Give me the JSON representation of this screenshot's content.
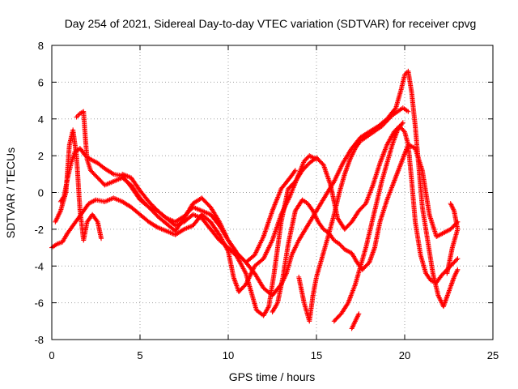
{
  "chart_data": {
    "type": "scatter",
    "title": "Day 254 of 2021, Sidereal Day-to-day VTEC variation (SDTVAR) for receiver cpvg",
    "xlabel": "GPS time / hours",
    "ylabel": "SDTVAR / TECUs",
    "xlim": [
      0,
      25
    ],
    "ylim": [
      -8,
      8
    ],
    "xticks": [
      0,
      5,
      10,
      15,
      20,
      25
    ],
    "yticks": [
      -8,
      -6,
      -4,
      -2,
      0,
      2,
      4,
      6,
      8
    ],
    "grid": true,
    "marker": "+",
    "color": "#ff0000",
    "series": [
      {
        "x": [
          0.0,
          0.3,
          0.6,
          0.9,
          1.2,
          1.5,
          1.8,
          2.1,
          2.5,
          3.0,
          3.5,
          4.0,
          4.5,
          5.0,
          5.5,
          6.0,
          6.5,
          7.0,
          7.5,
          8.0,
          8.5,
          9.0,
          9.5,
          10.0,
          10.3,
          10.6,
          11.0,
          11.5,
          12.0,
          12.5,
          13.0,
          13.5,
          14.0,
          14.3,
          14.6,
          15.0
        ],
        "y": [
          -3.0,
          -2.8,
          -2.7,
          -2.2,
          -1.8,
          -1.4,
          -1.0,
          -0.6,
          -0.4,
          -0.5,
          -0.3,
          -0.5,
          -0.8,
          -1.2,
          -1.6,
          -1.9,
          -2.1,
          -2.3,
          -2.0,
          -1.8,
          -1.2,
          -1.6,
          -2.3,
          -3.2,
          -4.6,
          -5.4,
          -5.0,
          -4.0,
          -3.6,
          -2.6,
          -1.2,
          -0.2,
          1.0,
          1.7,
          2.0,
          1.8
        ]
      },
      {
        "x": [
          0.5,
          0.7,
          0.9,
          1.1,
          1.3,
          1.6,
          1.9,
          2.2,
          2.6,
          3.0,
          3.5,
          4.0,
          4.5,
          5.0,
          5.5,
          6.0,
          6.5,
          7.0,
          7.5,
          8.0,
          8.5,
          9.0,
          9.5,
          10.0,
          10.5,
          11.0,
          11.3,
          11.6,
          12.0,
          12.3,
          12.6,
          13.0,
          13.4,
          13.8,
          14.2,
          14.6,
          15.0,
          15.4,
          15.8,
          16.2,
          16.6,
          17.0,
          17.4,
          17.8,
          18.2,
          18.6,
          19.0,
          19.4,
          19.7,
          20.0,
          20.2,
          20.4,
          20.6,
          20.9,
          21.2,
          21.5,
          21.8,
          22.1,
          22.4,
          22.7,
          23.0
        ],
        "y": [
          -0.5,
          -0.2,
          0.8,
          1.6,
          2.2,
          2.4,
          2.0,
          1.8,
          1.6,
          1.3,
          1.0,
          0.9,
          0.3,
          -0.4,
          -0.8,
          -1.0,
          -1.4,
          -1.8,
          -1.6,
          -1.2,
          -1.4,
          -2.0,
          -2.6,
          -3.0,
          -3.5,
          -4.4,
          -5.4,
          -6.4,
          -6.7,
          -6.2,
          -4.4,
          -1.6,
          0.2,
          0.6,
          1.2,
          1.6,
          1.9,
          1.5,
          0.4,
          -1.4,
          -2.0,
          -1.6,
          -1.0,
          -0.6,
          0.4,
          1.6,
          2.6,
          3.3,
          3.6,
          3.3,
          2.6,
          0.6,
          -1.6,
          -3.4,
          -4.4,
          -4.8,
          -4.9,
          -4.5,
          -4.2,
          -3.9,
          -3.6
        ]
      },
      {
        "x": [
          0.2,
          0.5,
          0.8,
          1.0,
          1.2,
          1.4,
          1.6,
          1.8,
          2.0,
          2.3,
          2.6,
          2.8
        ],
        "y": [
          -1.6,
          -1.0,
          0.0,
          2.6,
          3.4,
          2.0,
          -1.0,
          -2.6,
          -1.6,
          -1.2,
          -1.6,
          -2.5
        ]
      },
      {
        "x": [
          1.4,
          1.6,
          1.8,
          1.9,
          2.0,
          2.2,
          2.6,
          3.0,
          3.5,
          4.0,
          4.5,
          5.0,
          5.5,
          6.0,
          6.5,
          7.0,
          7.5,
          8.0,
          8.5,
          9.0,
          9.5,
          10.0,
          10.5,
          11.0,
          11.5,
          12.0,
          12.5,
          13.0,
          13.5,
          13.8
        ],
        "y": [
          4.1,
          4.3,
          4.4,
          3.0,
          1.8,
          1.2,
          0.8,
          0.4,
          0.6,
          0.8,
          0.4,
          -0.3,
          -0.8,
          -1.3,
          -1.7,
          -2.1,
          -1.4,
          -0.6,
          -0.3,
          -0.8,
          -1.6,
          -2.6,
          -3.3,
          -3.8,
          -3.4,
          -2.4,
          -1.0,
          0.2,
          0.8,
          1.2
        ]
      },
      {
        "x": [
          4.0,
          4.5,
          5.0,
          5.5,
          6.0,
          6.5,
          7.0,
          7.5,
          8.0,
          8.5,
          9.0,
          9.5,
          10.0,
          10.5,
          11.0,
          11.5,
          12.0,
          12.5,
          13.0,
          13.3,
          13.6,
          14.0,
          14.5,
          15.0,
          15.5,
          16.0,
          16.5,
          17.0,
          17.5,
          18.0,
          18.5,
          19.0,
          19.5,
          19.8,
          20.0,
          20.2,
          20.4,
          20.6,
          20.8,
          21.0,
          21.3,
          21.6,
          21.9,
          22.2,
          22.5,
          22.8,
          23.0
        ],
        "y": [
          1.0,
          0.8,
          0.1,
          -0.5,
          -1.0,
          -1.4,
          -1.6,
          -1.3,
          -0.8,
          -1.0,
          -1.2,
          -1.8,
          -2.6,
          -3.3,
          -3.8,
          -4.4,
          -5.2,
          -5.6,
          -5.0,
          -4.4,
          -3.4,
          -2.6,
          -1.8,
          -1.0,
          -0.2,
          0.6,
          1.6,
          2.4,
          3.0,
          3.3,
          3.6,
          4.0,
          4.6,
          5.6,
          6.4,
          6.6,
          5.4,
          3.6,
          1.4,
          -0.8,
          -2.6,
          -4.4,
          -5.6,
          -6.2,
          -5.4,
          -4.6,
          -4.2
        ]
      },
      {
        "x": [
          12.5,
          12.8,
          13.1,
          13.4,
          13.8,
          14.2,
          14.5,
          14.8,
          15.1,
          15.4,
          15.7,
          16.0,
          16.3,
          16.6,
          17.0,
          17.3,
          17.6,
          18.0,
          18.3,
          18.6,
          19.0,
          19.4,
          19.8,
          20.2,
          20.6,
          21.0,
          21.4,
          21.8,
          22.2,
          22.6,
          23.0
        ],
        "y": [
          -6.5,
          -6.0,
          -4.6,
          -2.8,
          -1.0,
          -0.4,
          -0.6,
          -1.0,
          -1.6,
          -2.0,
          -2.2,
          -2.6,
          -2.8,
          -3.1,
          -3.3,
          -3.8,
          -4.2,
          -3.8,
          -3.0,
          -1.6,
          -0.4,
          0.6,
          1.6,
          2.6,
          2.4,
          1.2,
          -1.2,
          -2.4,
          -2.2,
          -2.0,
          -1.6
        ]
      },
      {
        "x": [
          14.0,
          14.3,
          14.6,
          14.8,
          15.0,
          15.3,
          15.6,
          16.0,
          16.3,
          16.6,
          16.9,
          17.2,
          17.5,
          17.8,
          18.1,
          18.4,
          18.7,
          19.0,
          19.3,
          19.6,
          19.9,
          20.2
        ],
        "y": [
          -4.6,
          -6.0,
          -7.0,
          -5.6,
          -4.6,
          -3.6,
          -2.6,
          -1.2,
          0.0,
          1.0,
          1.8,
          2.4,
          2.8,
          3.0,
          3.2,
          3.4,
          3.6,
          3.9,
          4.2,
          4.4,
          4.6,
          4.4
        ]
      },
      {
        "x": [
          16.0,
          16.4,
          16.8,
          17.2,
          17.5,
          17.8,
          18.1,
          18.4,
          18.7,
          19.0,
          19.3,
          19.6,
          19.9
        ],
        "y": [
          -7.0,
          -6.6,
          -6.0,
          -5.0,
          -4.0,
          -3.0,
          -1.8,
          -0.6,
          0.6,
          1.6,
          2.6,
          3.4,
          3.8
        ]
      },
      {
        "x": [
          17.0,
          17.2,
          17.4
        ],
        "y": [
          -7.4,
          -7.0,
          -6.6
        ]
      },
      {
        "x": [
          22.4,
          22.7,
          23.0,
          22.8,
          22.6
        ],
        "y": [
          -4.4,
          -3.0,
          -2.0,
          -1.0,
          -0.6
        ]
      }
    ]
  }
}
